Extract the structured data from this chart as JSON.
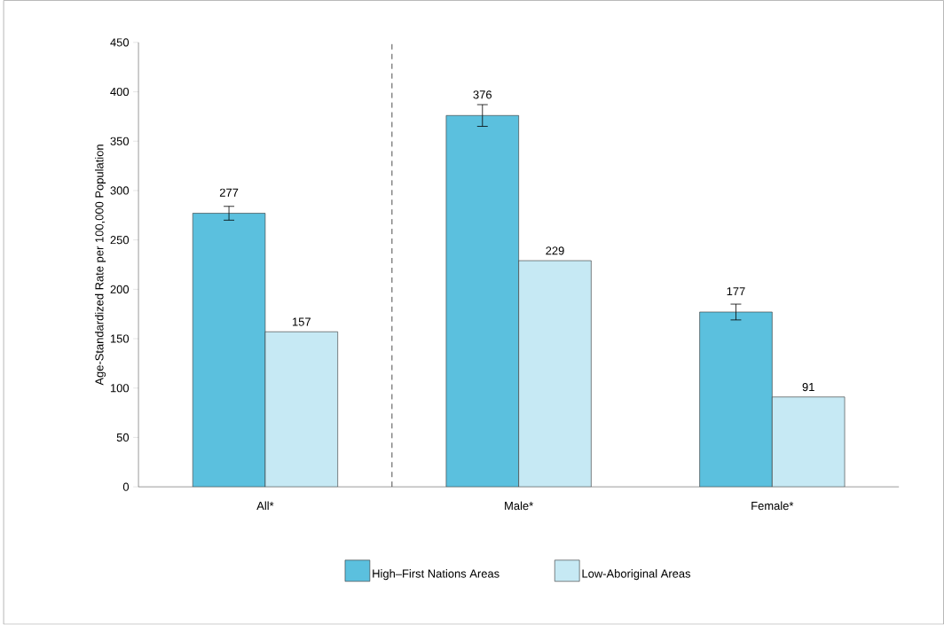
{
  "chart_data": {
    "type": "bar",
    "ylabel": "Age-Standardized Rate per 100,000 Population",
    "categories": [
      "All*",
      "Male*",
      "Female*"
    ],
    "series": [
      {
        "name": "High–First Nations Areas",
        "color": "#5bc0de",
        "values": [
          277,
          376,
          177
        ],
        "errors": [
          7,
          11,
          8
        ]
      },
      {
        "name": "Low-Aboriginal Areas",
        "color": "#c6e9f4",
        "values": [
          157,
          229,
          91
        ]
      }
    ],
    "ylim": [
      0,
      450
    ],
    "yticks": [
      0,
      50,
      100,
      150,
      200,
      250,
      300,
      350,
      400,
      450
    ],
    "data_labels": true,
    "legend": "bottom"
  }
}
